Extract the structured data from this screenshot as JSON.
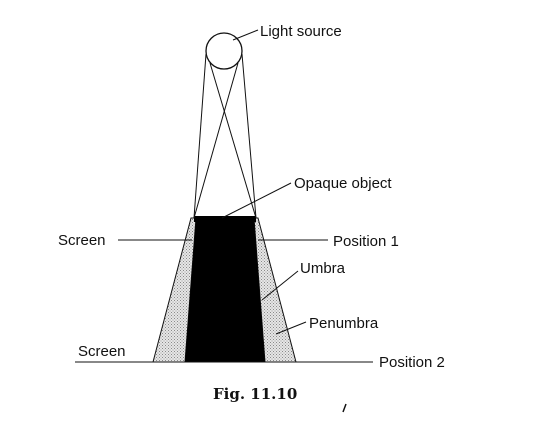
{
  "diagram": {
    "labels": {
      "light_source": "Light source",
      "opaque_object": "Opaque object",
      "screen_top": "Screen",
      "position_1": "Position 1",
      "umbra": "Umbra",
      "penumbra": "Penumbra",
      "screen_bottom": "Screen",
      "position_2": "Position 2"
    },
    "caption": "Fig. 11.10",
    "colors": {
      "umbra": "#000000",
      "penumbra": "#c8c8c8",
      "line": "#111111"
    }
  }
}
